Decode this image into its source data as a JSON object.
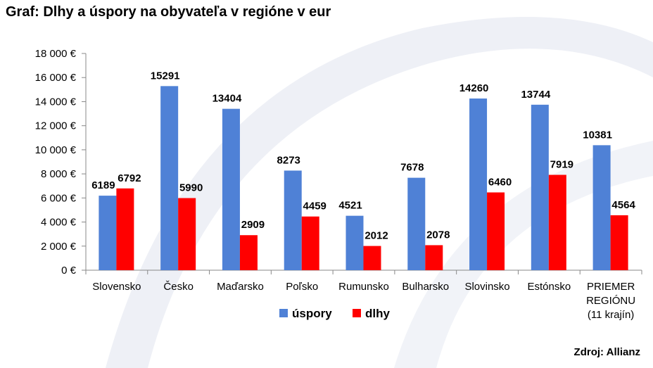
{
  "title": "Graf: Dlhy a úspory na obyvateľa v regióne v eur",
  "source": "Zdroj: Allianz",
  "chart_data": {
    "type": "bar",
    "categories": [
      [
        "Slovensko"
      ],
      [
        "Česko"
      ],
      [
        "Maďarsko"
      ],
      [
        "Poľsko"
      ],
      [
        "Rumunsko"
      ],
      [
        "Bulharsko"
      ],
      [
        "Slovinsko"
      ],
      [
        "Estónsko"
      ],
      [
        "PRIEMER",
        "REGIÓNU",
        "(11 krajín)"
      ]
    ],
    "series": [
      {
        "name": "úspory",
        "color": "#4F81D6",
        "values": [
          6189,
          15291,
          13404,
          8273,
          4521,
          7678,
          14260,
          13744,
          10381
        ]
      },
      {
        "name": "dlhy",
        "color": "#FF0000",
        "values": [
          6792,
          5990,
          2909,
          4459,
          2012,
          2078,
          6460,
          7919,
          4564
        ]
      }
    ],
    "ylim": [
      0,
      18000
    ],
    "yticks": [
      0,
      2000,
      4000,
      6000,
      8000,
      10000,
      12000,
      14000,
      16000,
      18000
    ],
    "ytick_labels": [
      "0 €",
      "2 000 €",
      "4 000 €",
      "6 000 €",
      "8 000 €",
      "10 000 €",
      "12 000 €",
      "14 000 €",
      "16 000 €",
      "18 000 €"
    ],
    "xlabel": "",
    "ylabel": "",
    "legend_position": "bottom",
    "grid": false
  }
}
